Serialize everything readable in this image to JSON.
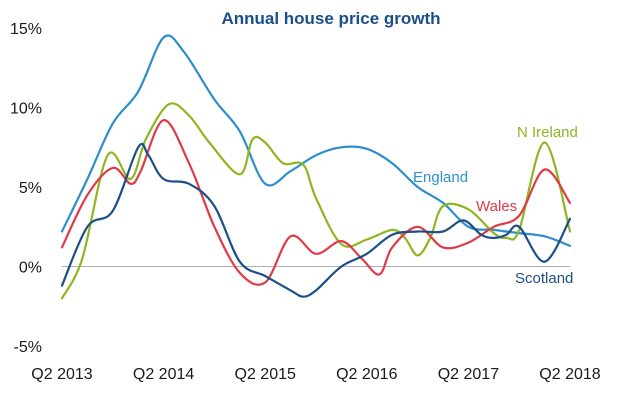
{
  "chart_data": {
    "type": "line",
    "title": "Annual house price growth",
    "xlabel": "",
    "ylabel": "",
    "ylim": [
      -5,
      15
    ],
    "yticks": [
      15,
      10,
      5,
      0,
      -5
    ],
    "ytick_labels": [
      "15%",
      "10%",
      "5%",
      "0%",
      "-5%"
    ],
    "xlim": [
      0,
      20
    ],
    "xticks": [
      0,
      4,
      8,
      12,
      16,
      20
    ],
    "xtick_labels": [
      "Q2 2013",
      "Q2 2014",
      "Q2 2015",
      "Q2 2016",
      "Q2 2017",
      "Q2 2018"
    ],
    "title_color": "#1b4f8a",
    "axis_color": "#b0b0b0",
    "series": [
      {
        "name": "England",
        "color": "#2e8dcc",
        "x": [
          0,
          1,
          2,
          3,
          4,
          4.8,
          6,
          7,
          8,
          9,
          10,
          11,
          12,
          13,
          14,
          15,
          16,
          17,
          18,
          19,
          20
        ],
        "values": [
          2.2,
          5.5,
          9,
          11,
          14.4,
          13.5,
          10.5,
          8.5,
          5.2,
          6,
          7,
          7.5,
          7.4,
          6.5,
          5,
          4,
          2.5,
          2.3,
          2.1,
          1.9,
          1.3
        ]
      },
      {
        "name": "N Ireland",
        "color": "#8db61f",
        "x": [
          0,
          0.8,
          1.8,
          2.7,
          3.3,
          4.2,
          5,
          5.8,
          7,
          7.5,
          8,
          8.7,
          9.5,
          10,
          11,
          12,
          13,
          13.5,
          14,
          14.5,
          15,
          16,
          17,
          17.5,
          18,
          19,
          20
        ],
        "values": [
          -2,
          0.5,
          7,
          5.5,
          8,
          10.2,
          9.5,
          7.8,
          5.8,
          8,
          7.8,
          6.5,
          6.4,
          4.3,
          1.4,
          1.7,
          2.3,
          1.8,
          0.7,
          1.8,
          3.8,
          3.6,
          2.1,
          1.8,
          2.3,
          7.8,
          2.2
        ]
      },
      {
        "name": "Wales",
        "color": "#e03a48",
        "x": [
          0,
          1,
          2,
          2.7,
          3.1,
          4,
          5,
          6,
          7,
          8,
          9,
          10,
          11,
          11.8,
          12.5,
          13,
          14,
          15,
          16,
          17,
          18,
          19,
          20
        ],
        "values": [
          1.2,
          4.5,
          6.2,
          5.2,
          6,
          9.2,
          6.5,
          2.5,
          -0.4,
          -1,
          1.9,
          0.8,
          1.6,
          0.5,
          -0.5,
          1.2,
          2.5,
          1.2,
          1.5,
          2.5,
          3.2,
          6.1,
          4
        ]
      },
      {
        "name": "Scotland",
        "color": "#1d4f86",
        "x": [
          0,
          1,
          2,
          3,
          3.4,
          4,
          5,
          6,
          7,
          8,
          9,
          9.5,
          10,
          11,
          12,
          13,
          14,
          15,
          15.8,
          16.5,
          17,
          17.5,
          18,
          19,
          20
        ],
        "values": [
          -1.2,
          2.5,
          3.5,
          7.5,
          7,
          5.5,
          5.2,
          3.8,
          0.3,
          -0.6,
          -1.5,
          -1.9,
          -1.5,
          0,
          0.8,
          2,
          2.2,
          2.2,
          2.9,
          2,
          1.8,
          2,
          2.5,
          0.3,
          3
        ]
      }
    ],
    "series_labels": [
      {
        "name": "England",
        "text": "England"
      },
      {
        "name": "N Ireland",
        "text": "N Ireland"
      },
      {
        "name": "Wales",
        "text": "Wales"
      },
      {
        "name": "Scotland",
        "text": "Scotland"
      }
    ]
  }
}
